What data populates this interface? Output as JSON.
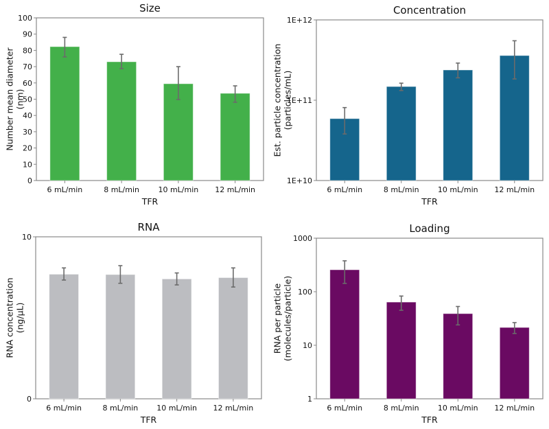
{
  "chart_data": [
    {
      "type": "bar",
      "title": "Size",
      "xlabel": "TFR",
      "ylabel": [
        "Number mean diameter",
        "(nm)"
      ],
      "categories": [
        "6 mL/min",
        "8 mL/min",
        "10 mL/min",
        "12 mL/min"
      ],
      "values": [
        82.3,
        73.0,
        59.5,
        53.6
      ],
      "error_low": [
        76.0,
        68.8,
        49.8,
        48.1
      ],
      "error_high": [
        88.0,
        77.6,
        70.0,
        58.2
      ],
      "yscale": "linear",
      "ylim": [
        0,
        100
      ],
      "yticks": [
        0,
        10,
        20,
        30,
        40,
        50,
        60,
        70,
        80,
        90,
        100
      ],
      "ytick_labels": [
        "0",
        "10",
        "20",
        "30",
        "40",
        "50",
        "60",
        "70",
        "80",
        "90",
        "100"
      ],
      "color": "#43b04a",
      "grid": false
    },
    {
      "type": "bar",
      "title": "Concentration",
      "xlabel": "TFR",
      "ylabel": [
        "Est. particle concentration",
        "(particles/mL)"
      ],
      "categories": [
        "6 mL/min",
        "8 mL/min",
        "10 mL/min",
        "12 mL/min"
      ],
      "values": [
        59000000000.0,
        148000000000.0,
        238000000000.0,
        360000000000.0
      ],
      "error_low": [
        38000000000.0,
        132000000000.0,
        190000000000.0,
        184000000000.0
      ],
      "error_high": [
        81000000000.0,
        163000000000.0,
        290000000000.0,
        550000000000.0
      ],
      "yscale": "log",
      "ylim": [
        10000000000.0,
        1000000000000.0
      ],
      "yticks": [
        10000000000.0,
        100000000000.0,
        1000000000000.0
      ],
      "ytick_labels": [
        "1E+10",
        "1E+11",
        "1E+12"
      ],
      "color": "#15658c",
      "grid": false
    },
    {
      "type": "bar",
      "title": "RNA",
      "xlabel": "TFR",
      "ylabel": [
        "RNA concentration",
        "(ng/µL)"
      ],
      "categories": [
        "6 mL/min",
        "8 mL/min",
        "10 mL/min",
        "12 mL/min"
      ],
      "values": [
        7.69,
        7.67,
        7.4,
        7.48
      ],
      "error_low": [
        7.33,
        7.13,
        7.03,
        6.9
      ],
      "error_high": [
        8.08,
        8.22,
        7.77,
        8.08
      ],
      "yscale": "linear",
      "ylim": [
        0,
        10
      ],
      "yticks": [
        0,
        10
      ],
      "ytick_labels": [
        "0",
        "10"
      ],
      "color": "#bcbdc1",
      "grid": false
    },
    {
      "type": "bar",
      "title": "Loading",
      "xlabel": "TFR",
      "ylabel": [
        "RNA per particle",
        "(molecules/particle)"
      ],
      "categories": [
        "6 mL/min",
        "8 mL/min",
        "10 mL/min",
        "12 mL/min"
      ],
      "values": [
        257,
        64,
        39,
        21.5
      ],
      "error_low": [
        143,
        45,
        24,
        16.6
      ],
      "error_high": [
        378,
        83,
        53,
        26.5
      ],
      "yscale": "log",
      "ylim": [
        1,
        1000
      ],
      "yticks": [
        1,
        10,
        100,
        1000
      ],
      "ytick_labels": [
        "1",
        "10",
        "100",
        "1000"
      ],
      "color": "#6a0a62",
      "grid": false
    }
  ]
}
